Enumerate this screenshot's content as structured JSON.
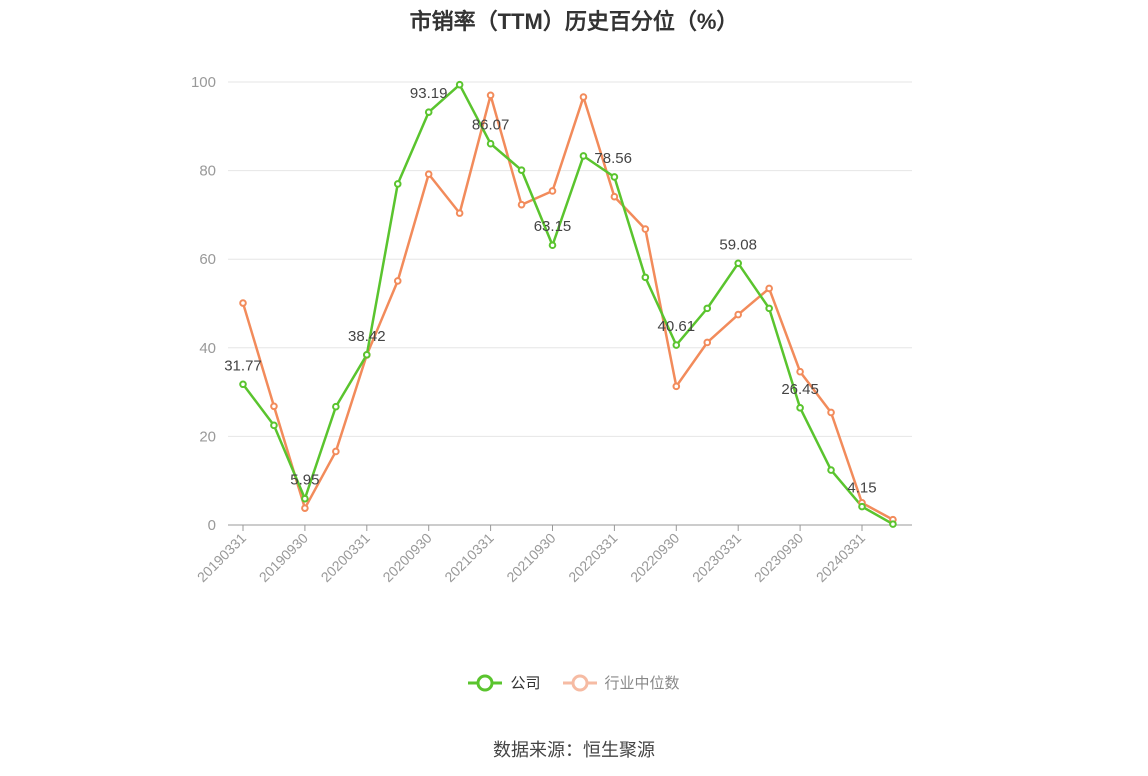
{
  "chart_data": {
    "type": "line",
    "title": "市销率（TTM）历史百分位（%）",
    "xlabel": "",
    "ylabel": "",
    "ylim": [
      0,
      100
    ],
    "yticks": [
      0,
      20,
      40,
      60,
      80,
      100
    ],
    "grid": true,
    "legend_position": "bottom",
    "x": [
      "20190331",
      "20190630",
      "20190930",
      "20191231",
      "20200331",
      "20200630",
      "20200930",
      "20201231",
      "20210331",
      "20210630",
      "20210930",
      "20211231",
      "20220331",
      "20220630",
      "20220930",
      "20221231",
      "20230331",
      "20230630",
      "20230930",
      "20231231",
      "20240331",
      "20240630"
    ],
    "x_tick_labels": [
      "20190331",
      "20190930",
      "20200331",
      "20200930",
      "20210331",
      "20210930",
      "20220331",
      "20220930",
      "20230331",
      "20230930",
      "20240331"
    ],
    "x_tick_index": [
      0,
      2,
      4,
      6,
      8,
      10,
      12,
      14,
      16,
      18,
      20
    ],
    "series": [
      {
        "name": "公司",
        "color": "#5ac42e",
        "values": [
          31.77,
          22.5,
          5.95,
          26.7,
          38.42,
          77.0,
          93.19,
          99.4,
          86.07,
          80.1,
          63.15,
          83.3,
          78.56,
          55.9,
          40.61,
          48.9,
          59.08,
          48.9,
          26.45,
          12.4,
          4.15,
          0.2
        ]
      },
      {
        "name": "行业中位数",
        "color": "#f28b5b",
        "values": [
          50.1,
          26.8,
          3.8,
          16.6,
          38.4,
          55.1,
          79.2,
          70.4,
          97.0,
          72.3,
          75.4,
          96.6,
          74.1,
          66.8,
          31.3,
          41.2,
          47.5,
          53.4,
          34.6,
          25.4,
          5.0,
          1.2
        ]
      }
    ],
    "data_labels": [
      {
        "series": 0,
        "index": 0,
        "text": "31.77"
      },
      {
        "series": 0,
        "index": 2,
        "text": "5.95"
      },
      {
        "series": 0,
        "index": 4,
        "text": "38.42"
      },
      {
        "series": 0,
        "index": 6,
        "text": "93.19"
      },
      {
        "series": 0,
        "index": 8,
        "text": "86.07"
      },
      {
        "series": 0,
        "index": 10,
        "text": "63.15"
      },
      {
        "series": 0,
        "index": 12,
        "text": "78.56"
      },
      {
        "series": 0,
        "index": 14,
        "text": "40.61"
      },
      {
        "series": 0,
        "index": 16,
        "text": "59.08"
      },
      {
        "series": 0,
        "index": 18,
        "text": "26.45"
      },
      {
        "series": 0,
        "index": 20,
        "text": "4.15"
      }
    ]
  },
  "legend": {
    "company_label": "公司",
    "industry_label": "行业中位数"
  },
  "source_text": "数据来源：恒生聚源",
  "colors": {
    "company": "#5ac42e",
    "industry": "#f28b5b",
    "industry_legend": "#f6bba3",
    "grid": "#e6e6e6",
    "axis": "#999999",
    "label": "#444444"
  }
}
